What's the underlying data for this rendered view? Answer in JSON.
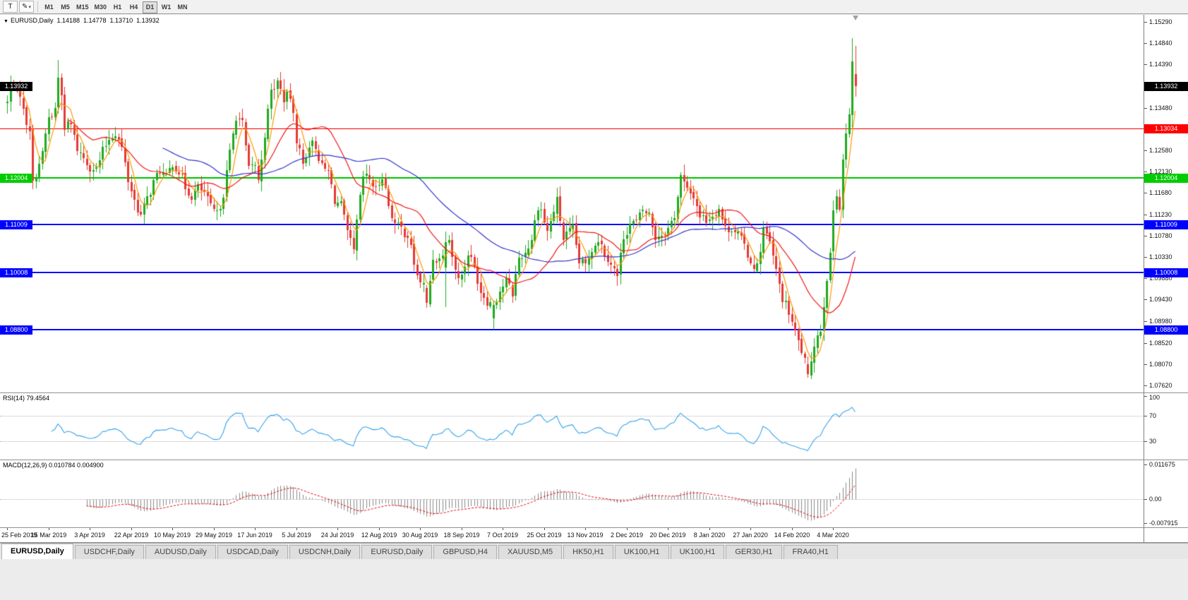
{
  "toolbar": {
    "buttons": [
      {
        "label": "T"
      },
      {
        "label": "✎"
      }
    ],
    "dropdown_caret": "▾",
    "timeframes": [
      "M1",
      "M5",
      "M15",
      "M30",
      "H1",
      "H4",
      "D1",
      "W1",
      "MN"
    ],
    "active_timeframe": "D1"
  },
  "main_chart": {
    "marker": "▼",
    "symbol_title": "EURUSD,Daily",
    "open": "1.14188",
    "high": "1.14778",
    "low": "1.13710",
    "close": "1.13932"
  },
  "price_axis": {
    "max": 1.1529,
    "min": 1.0762,
    "ticks": [
      "1.15290",
      "1.14840",
      "1.14390",
      "1.13940",
      "1.13480",
      "1.13030",
      "1.12580",
      "1.12130",
      "1.11680",
      "1.11230",
      "1.10780",
      "1.10330",
      "1.09880",
      "1.09430",
      "1.08980",
      "1.08520",
      "1.08070",
      "1.07620"
    ]
  },
  "levels": [
    {
      "value": 1.13932,
      "label": "1.13932",
      "color": "#000000",
      "line": "none",
      "width": 0,
      "left_tag": true,
      "name": "current-price"
    },
    {
      "value": 1.13034,
      "label": "1.13034",
      "color": "#ff0000",
      "line": "solid",
      "width": 1,
      "left_tag": false,
      "name": "resistance-red"
    },
    {
      "value": 1.12004,
      "label": "1.12004",
      "color": "#00cc00",
      "line": "solid",
      "width": 2,
      "left_tag": true,
      "name": "level-green"
    },
    {
      "value": 1.11009,
      "label": "1.11009",
      "color": "#0000ff",
      "line": "solid",
      "width": 2,
      "left_tag": true,
      "name": "support-blue-1"
    },
    {
      "value": 1.10008,
      "label": "1.10008",
      "color": "#0000ff",
      "line": "solid",
      "width": 2,
      "left_tag": true,
      "name": "support-blue-2"
    },
    {
      "value": 1.088,
      "label": "1.08800",
      "color": "#0000ff",
      "line": "solid",
      "width": 2,
      "left_tag": true,
      "name": "support-blue-3"
    }
  ],
  "rsi_panel": {
    "label": "RSI(14) 79.4564",
    "value": 79.4564,
    "ticks": [
      {
        "v": 100,
        "t": "100"
      },
      {
        "v": 70,
        "t": "70"
      },
      {
        "v": 30,
        "t": "30"
      }
    ],
    "guide_levels": [
      70,
      30
    ]
  },
  "macd_panel": {
    "label": "MACD(12,26,9) 0.010784 0.004900",
    "main": 0.010784,
    "signal": 0.0049,
    "max": 0.011675,
    "min": -0.007915,
    "ticks": [
      {
        "v": 0.011675,
        "t": "0.011675"
      },
      {
        "v": 0,
        "t": "0.00"
      },
      {
        "v": -0.007915,
        "t": "-0.007915"
      }
    ]
  },
  "time_axis": {
    "step_bars": 13,
    "labels": [
      "25 Feb 2019",
      "15 Mar 2019",
      "3 Apr 2019",
      "22 Apr 2019",
      "10 May 2019",
      "29 May 2019",
      "17 Jun 2019",
      "5 Jul 2019",
      "24 Jul 2019",
      "12 Aug 2019",
      "30 Aug 2019",
      "18 Sep 2019",
      "7 Oct 2019",
      "25 Oct 2019",
      "13 Nov 2019",
      "2 Dec 2019",
      "20 Dec 2019",
      "8 Jan 2020",
      "27 Jan 2020",
      "14 Feb 2020",
      "4 Mar 2020"
    ]
  },
  "tabs": {
    "active_index": 0,
    "items": [
      "EURUSD,Daily",
      "USDCHF,Daily",
      "AUDUSD,Daily",
      "USDCAD,Daily",
      "USDCNH,Daily",
      "EURUSD,Daily",
      "GBPUSD,H4",
      "XAUUSD,M5",
      "HK50,H1",
      "UK100,H1",
      "UK100,H1",
      "GER30,H1",
      "FRA40,H1"
    ]
  },
  "chart_data": {
    "type": "candlestick",
    "symbol": "EURUSD",
    "period": "Daily",
    "bars": 268,
    "y_range": {
      "min": 1.0762,
      "max": 1.1529
    },
    "noise_seed": 7,
    "close_waypoints": [
      [
        0,
        1.1358
      ],
      [
        1,
        1.1392
      ],
      [
        2,
        1.1404
      ],
      [
        3,
        1.1372
      ],
      [
        4,
        1.138
      ],
      [
        5,
        1.134
      ],
      [
        6,
        1.1318
      ],
      [
        7,
        1.1306
      ],
      [
        8,
        1.1194
      ],
      [
        9,
        1.1212
      ],
      [
        10,
        1.1232
      ],
      [
        11,
        1.1248
      ],
      [
        12,
        1.1292
      ],
      [
        13,
        1.1326
      ],
      [
        14,
        1.133
      ],
      [
        15,
        1.1345
      ],
      [
        16,
        1.1412
      ],
      [
        17,
        1.1375
      ],
      [
        18,
        1.1301
      ],
      [
        19,
        1.1316
      ],
      [
        20,
        1.131
      ],
      [
        22,
        1.1262
      ],
      [
        24,
        1.1242
      ],
      [
        26,
        1.1224
      ],
      [
        28,
        1.1218
      ],
      [
        30,
        1.1256
      ],
      [
        32,
        1.1284
      ],
      [
        34,
        1.1296
      ],
      [
        36,
        1.1262
      ],
      [
        38,
        1.1196
      ],
      [
        40,
        1.1152
      ],
      [
        42,
        1.112
      ],
      [
        44,
        1.1156
      ],
      [
        46,
        1.119
      ],
      [
        48,
        1.1216
      ],
      [
        50,
        1.12
      ],
      [
        52,
        1.1232
      ],
      [
        54,
        1.1214
      ],
      [
        56,
        1.118
      ],
      [
        58,
        1.1162
      ],
      [
        60,
        1.1178
      ],
      [
        62,
        1.1168
      ],
      [
        64,
        1.1136
      ],
      [
        66,
        1.1122
      ],
      [
        68,
        1.1168
      ],
      [
        70,
        1.1252
      ],
      [
        72,
        1.1332
      ],
      [
        74,
        1.1312
      ],
      [
        76,
        1.1216
      ],
      [
        78,
        1.1228
      ],
      [
        79,
        1.1192
      ],
      [
        81,
        1.1294
      ],
      [
        83,
        1.1382
      ],
      [
        85,
        1.1402
      ],
      [
        87,
        1.1368
      ],
      [
        89,
        1.1372
      ],
      [
        91,
        1.1282
      ],
      [
        93,
        1.1228
      ],
      [
        95,
        1.1272
      ],
      [
        97,
        1.1268
      ],
      [
        99,
        1.1222
      ],
      [
        101,
        1.1212
      ],
      [
        103,
        1.1152
      ],
      [
        105,
        1.1142
      ],
      [
        107,
        1.1082
      ],
      [
        109,
        1.1042
      ],
      [
        110,
        1.1106
      ],
      [
        112,
        1.1202
      ],
      [
        114,
        1.1198
      ],
      [
        116,
        1.1172
      ],
      [
        118,
        1.1208
      ],
      [
        120,
        1.1142
      ],
      [
        122,
        1.1102
      ],
      [
        124,
        1.1092
      ],
      [
        126,
        1.1078
      ],
      [
        129,
        1.0992
      ],
      [
        131,
        1.0972
      ],
      [
        132,
        1.0936
      ],
      [
        134,
        1.1032
      ],
      [
        136,
        1.1028
      ],
      [
        138,
        1.1064
      ],
      [
        139,
        1.1072
      ],
      [
        141,
        1.1002
      ],
      [
        143,
        1.0992
      ],
      [
        145,
        1.1042
      ],
      [
        147,
        1.1012
      ],
      [
        149,
        1.0962
      ],
      [
        151,
        1.0942
      ],
      [
        153,
        1.0932
      ],
      [
        155,
        1.0962
      ],
      [
        157,
        1.0982
      ],
      [
        159,
        1.0956
      ],
      [
        161,
        1.1032
      ],
      [
        163,
        1.1042
      ],
      [
        165,
        1.1072
      ],
      [
        167,
        1.1142
      ],
      [
        168,
        1.1132
      ],
      [
        170,
        1.1086
      ],
      [
        173,
        1.1152
      ],
      [
        175,
        1.1072
      ],
      [
        178,
        1.1092
      ],
      [
        180,
        1.1022
      ],
      [
        182,
        1.1016
      ],
      [
        184,
        1.1052
      ],
      [
        186,
        1.1072
      ],
      [
        188,
        1.1042
      ],
      [
        190,
        1.1022
      ],
      [
        192,
        1.0992
      ],
      [
        194,
        1.1078
      ],
      [
        196,
        1.1102
      ],
      [
        198,
        1.1106
      ],
      [
        200,
        1.1132
      ],
      [
        202,
        1.1122
      ],
      [
        204,
        1.1076
      ],
      [
        206,
        1.1082
      ],
      [
        208,
        1.1092
      ],
      [
        210,
        1.1122
      ],
      [
        212,
        1.1202
      ],
      [
        214,
        1.1172
      ],
      [
        216,
        1.1162
      ],
      [
        218,
        1.1122
      ],
      [
        220,
        1.1112
      ],
      [
        222,
        1.1122
      ],
      [
        224,
        1.1136
      ],
      [
        226,
        1.1092
      ],
      [
        228,
        1.1096
      ],
      [
        230,
        1.1082
      ],
      [
        232,
        1.1056
      ],
      [
        234,
        1.1022
      ],
      [
        236,
        1.1012
      ],
      [
        238,
        1.1092
      ],
      [
        240,
        1.1062
      ],
      [
        242,
        1.1002
      ],
      [
        244,
        1.0946
      ],
      [
        246,
        1.0916
      ],
      [
        248,
        1.0872
      ],
      [
        250,
        1.0836
      ],
      [
        252,
        1.0785
      ],
      [
        254,
        1.0852
      ],
      [
        256,
        1.0882
      ],
      [
        258,
        1.0992
      ],
      [
        259,
        1.1032
      ],
      [
        260,
        1.1134
      ],
      [
        261,
        1.1172
      ],
      [
        262,
        1.1136
      ],
      [
        263,
        1.1238
      ],
      [
        264,
        1.1288
      ],
      [
        265,
        1.1334
      ],
      [
        266,
        1.1446
      ],
      [
        267,
        1.13932
      ]
    ],
    "ohlc_overrides": {
      "8": {
        "o": 1.1304,
        "h": 1.1312,
        "l": 1.1176,
        "c": 1.1194
      },
      "16": {
        "o": 1.135,
        "h": 1.1448,
        "l": 1.1336,
        "c": 1.1412
      },
      "17": {
        "o": 1.1412,
        "h": 1.1421,
        "l": 1.1343,
        "c": 1.1375
      },
      "18": {
        "o": 1.1375,
        "h": 1.1392,
        "l": 1.1288,
        "c": 1.1301
      },
      "85": {
        "h": 1.1412
      },
      "132": {
        "o": 1.0968,
        "h": 1.0973,
        "l": 1.0926,
        "c": 1.0936
      },
      "138": {
        "o": 1.101,
        "h": 1.1087,
        "l": 1.0927,
        "c": 1.1064
      },
      "153": {
        "o": 1.0903,
        "h": 1.0941,
        "l": 1.0879,
        "c": 1.0932
      },
      "252": {
        "o": 1.0806,
        "h": 1.0823,
        "l": 1.0778,
        "c": 1.0785
      },
      "266": {
        "o": 1.1333,
        "h": 1.1495,
        "l": 1.1305,
        "c": 1.1446
      },
      "267": {
        "o": 1.14188,
        "h": 1.14778,
        "l": 1.1371,
        "c": 1.13932
      }
    },
    "moving_averages": [
      {
        "name": "ma-fast",
        "type": "sma",
        "period": 5,
        "color": "#ff9800"
      },
      {
        "name": "ma-medium",
        "type": "sma",
        "period": 20,
        "color": "#f21515"
      },
      {
        "name": "ma-slow",
        "type": "sma",
        "period": 50,
        "color": "#3333cc"
      }
    ],
    "indicators": {
      "rsi": {
        "period": 14,
        "current": 79.4564
      },
      "macd": {
        "fast": 12,
        "slow": 26,
        "signal": 9,
        "current_main": 0.010784,
        "current_signal": 0.0049
      }
    },
    "colors": {
      "up": "#1faa1f",
      "down": "#e53935",
      "rsi": "#36a2eb",
      "macd_hist": "#8a8a8a",
      "macd_signal": "#e60000",
      "background": "#ffffff"
    }
  }
}
